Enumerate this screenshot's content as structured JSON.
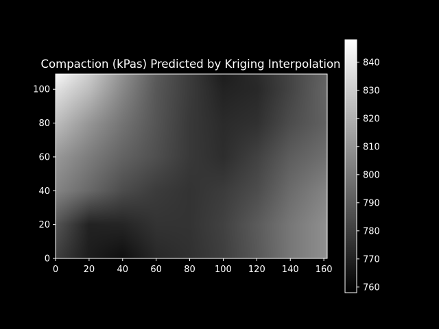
{
  "chart_data": {
    "type": "heatmap",
    "title": "Compaction (kPas) Predicted by Kriging Interpolation",
    "xlabel": "",
    "ylabel": "",
    "xlim": [
      0,
      162
    ],
    "ylim": [
      0,
      109
    ],
    "x_ticks": [
      0,
      20,
      40,
      60,
      80,
      100,
      120,
      140,
      160
    ],
    "y_ticks": [
      0,
      20,
      40,
      60,
      80,
      100
    ],
    "colormap": "gray",
    "colorbar": {
      "ticks": [
        760,
        770,
        780,
        790,
        800,
        810,
        820,
        830,
        840
      ],
      "range": [
        758,
        848
      ]
    },
    "x": [
      0,
      20,
      40,
      60,
      80,
      100,
      120,
      140,
      160
    ],
    "y": [
      0,
      20,
      40,
      60,
      80,
      100,
      109
    ],
    "z": [
      [
        780,
        768,
        763,
        772,
        775,
        780,
        789,
        800,
        808
      ],
      [
        788,
        770,
        771,
        776,
        776,
        781,
        790,
        800,
        808
      ],
      [
        805,
        795,
        785,
        779,
        776,
        779,
        785,
        796,
        804
      ],
      [
        812,
        802,
        793,
        786,
        778,
        774,
        781,
        791,
        797
      ],
      [
        825,
        811,
        799,
        788,
        778,
        773,
        775,
        785,
        792
      ],
      [
        838,
        825,
        806,
        789,
        779,
        770,
        772,
        782,
        793
      ],
      [
        846,
        830,
        809,
        790,
        779,
        768,
        773,
        782,
        792
      ]
    ],
    "grid": false,
    "legend": "colorbar-right"
  },
  "colors": {
    "background": "#000000",
    "foreground": "#ffffff"
  }
}
